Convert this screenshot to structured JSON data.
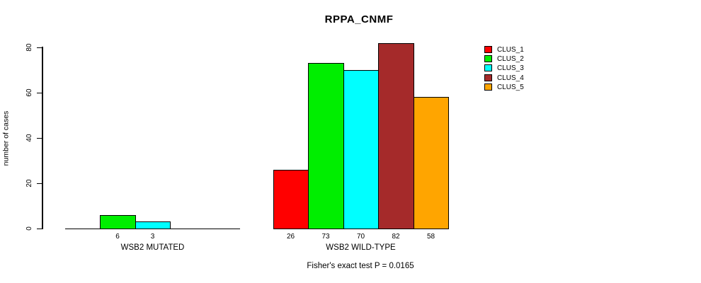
{
  "chart_data": {
    "type": "bar",
    "title": "RPPA_CNMF",
    "ylabel": "number of cases",
    "ylim": [
      0,
      80
    ],
    "yticks": [
      0,
      20,
      40,
      60,
      80
    ],
    "grid": false,
    "legend_position": "right",
    "legend": [
      {
        "name": "CLUS_1",
        "color": "#FF0000"
      },
      {
        "name": "CLUS_2",
        "color": "#00EE00"
      },
      {
        "name": "CLUS_3",
        "color": "#00FFFF"
      },
      {
        "name": "CLUS_4",
        "color": "#A52A2A"
      },
      {
        "name": "CLUS_5",
        "color": "#FFA500"
      }
    ],
    "categories": [
      "WSB2 MUTATED",
      "WSB2 WILD-TYPE"
    ],
    "groups": [
      {
        "label": "WSB2 MUTATED",
        "values": [
          0,
          6,
          3,
          0,
          0
        ],
        "value_labels": [
          "",
          "6",
          "3",
          "",
          ""
        ]
      },
      {
        "label": "WSB2 WILD-TYPE",
        "values": [
          26,
          73,
          70,
          82,
          58
        ],
        "value_labels": [
          "26",
          "73",
          "70",
          "82",
          "58"
        ]
      }
    ],
    "footer": "Fisher's exact test P = 0.0165"
  }
}
